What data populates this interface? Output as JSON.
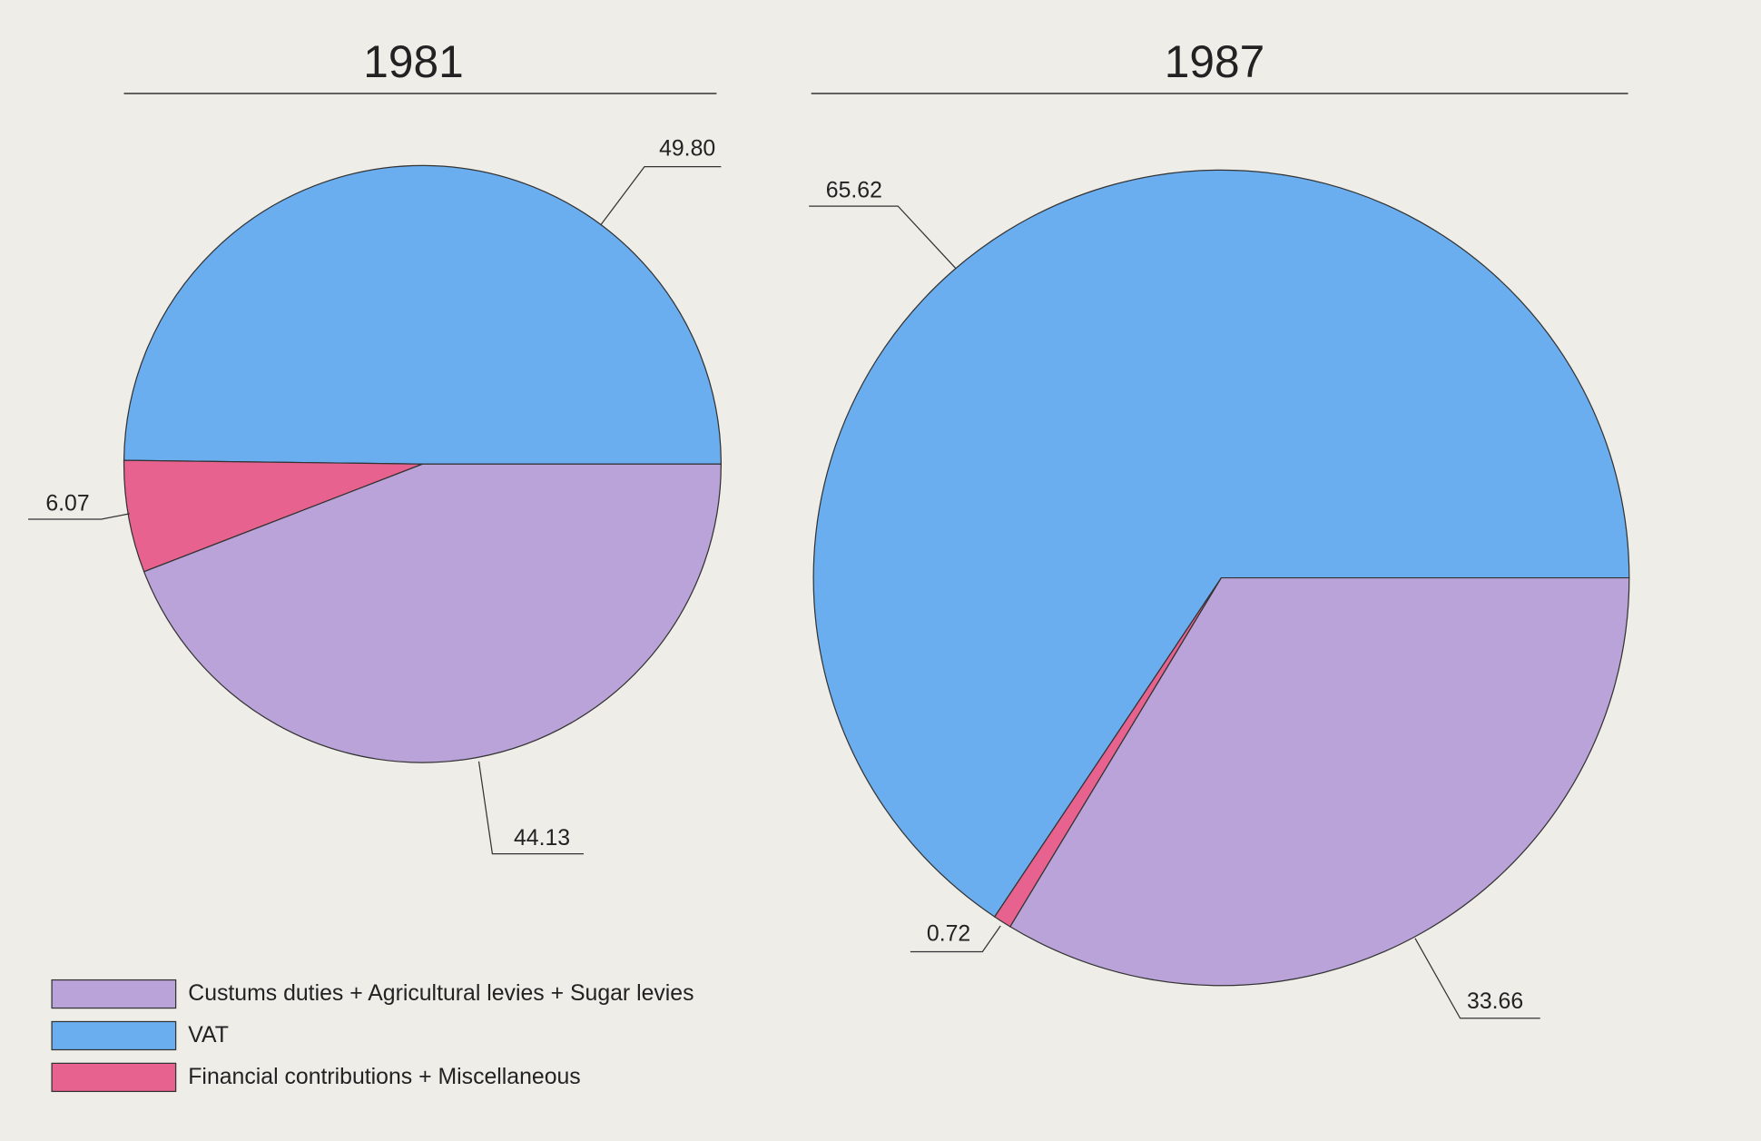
{
  "chart_data": [
    {
      "type": "pie",
      "title": "1981",
      "values": [
        44.13,
        49.8,
        6.07
      ],
      "value_labels": [
        "44.13",
        "49.80",
        "6.07"
      ]
    },
    {
      "type": "pie",
      "title": "1987",
      "values": [
        33.66,
        65.62,
        0.72
      ],
      "value_labels": [
        "33.66",
        "65.62",
        "0.72"
      ]
    }
  ],
  "legend": {
    "categories": [
      "Custums duties + Agricultural levies + Sugar levies",
      "VAT",
      "Financial contributions + Miscellaneous"
    ],
    "colors": [
      "#b9a3d8",
      "#6aaef0",
      "#e8628f"
    ]
  }
}
